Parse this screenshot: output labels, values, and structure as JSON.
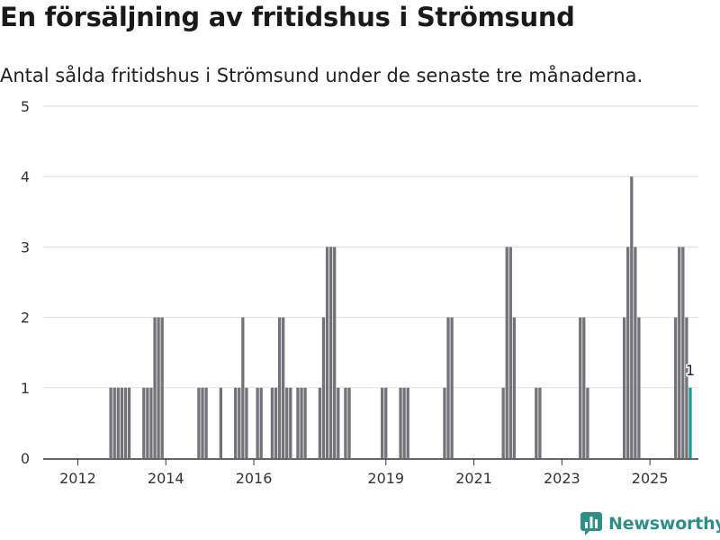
{
  "header": {
    "title": "En försäljning av fritidshus i Strömsund",
    "subtitle": "Antal sålda fritidshus i Strömsund under de senaste tre månaderna."
  },
  "brand": {
    "name": "Newsworthy",
    "color": "#2f8f88"
  },
  "chart_data": {
    "type": "bar",
    "title": "En försäljning av fritidshus i Strömsund",
    "subtitle": "Antal sålda fritidshus i Strömsund under de senaste tre månaderna.",
    "xlabel": "",
    "ylabel": "",
    "ylim": [
      0,
      5
    ],
    "yticks": [
      0,
      1,
      2,
      3,
      4,
      5
    ],
    "grid": true,
    "xticks": [
      {
        "label": "2012",
        "at": 6
      },
      {
        "label": "2014",
        "at": 30
      },
      {
        "label": "2016",
        "at": 54
      },
      {
        "label": "2019",
        "at": 90
      },
      {
        "label": "2021",
        "at": 114
      },
      {
        "label": "2023",
        "at": 138
      },
      {
        "label": "2025",
        "at": 162
      }
    ],
    "colors": {
      "bar": "#747378",
      "highlight": "#1a9c96",
      "grid": "#dedede",
      "axis": "#333333"
    },
    "highlight_label": "1",
    "values": [
      0,
      0,
      0,
      0,
      0,
      0,
      0,
      0,
      0,
      0,
      0,
      0,
      0,
      0,
      0,
      1,
      1,
      1,
      1,
      1,
      1,
      0,
      0,
      0,
      1,
      1,
      1,
      2,
      2,
      2,
      0,
      0,
      0,
      0,
      0,
      0,
      0,
      0,
      0,
      1,
      1,
      1,
      0,
      0,
      0,
      1,
      0,
      0,
      0,
      1,
      1,
      2,
      1,
      0,
      0,
      1,
      1,
      0,
      0,
      1,
      1,
      2,
      2,
      1,
      1,
      0,
      1,
      1,
      1,
      0,
      0,
      0,
      1,
      2,
      3,
      3,
      3,
      1,
      0,
      1,
      1,
      0,
      0,
      0,
      0,
      0,
      0,
      0,
      0,
      1,
      1,
      0,
      0,
      0,
      1,
      1,
      1,
      0,
      0,
      0,
      0,
      0,
      0,
      0,
      0,
      0,
      1,
      2,
      2,
      0,
      0,
      0,
      0,
      0,
      0,
      0,
      0,
      0,
      0,
      0,
      0,
      0,
      1,
      3,
      3,
      2,
      0,
      0,
      0,
      0,
      0,
      1,
      1,
      0,
      0,
      0,
      0,
      0,
      0,
      0,
      0,
      0,
      0,
      2,
      2,
      1,
      0,
      0,
      0,
      0,
      0,
      0,
      0,
      0,
      0,
      2,
      3,
      4,
      3,
      2,
      0,
      0,
      0,
      0,
      0,
      0,
      0,
      0,
      0,
      2,
      3,
      3,
      2,
      1
    ]
  }
}
